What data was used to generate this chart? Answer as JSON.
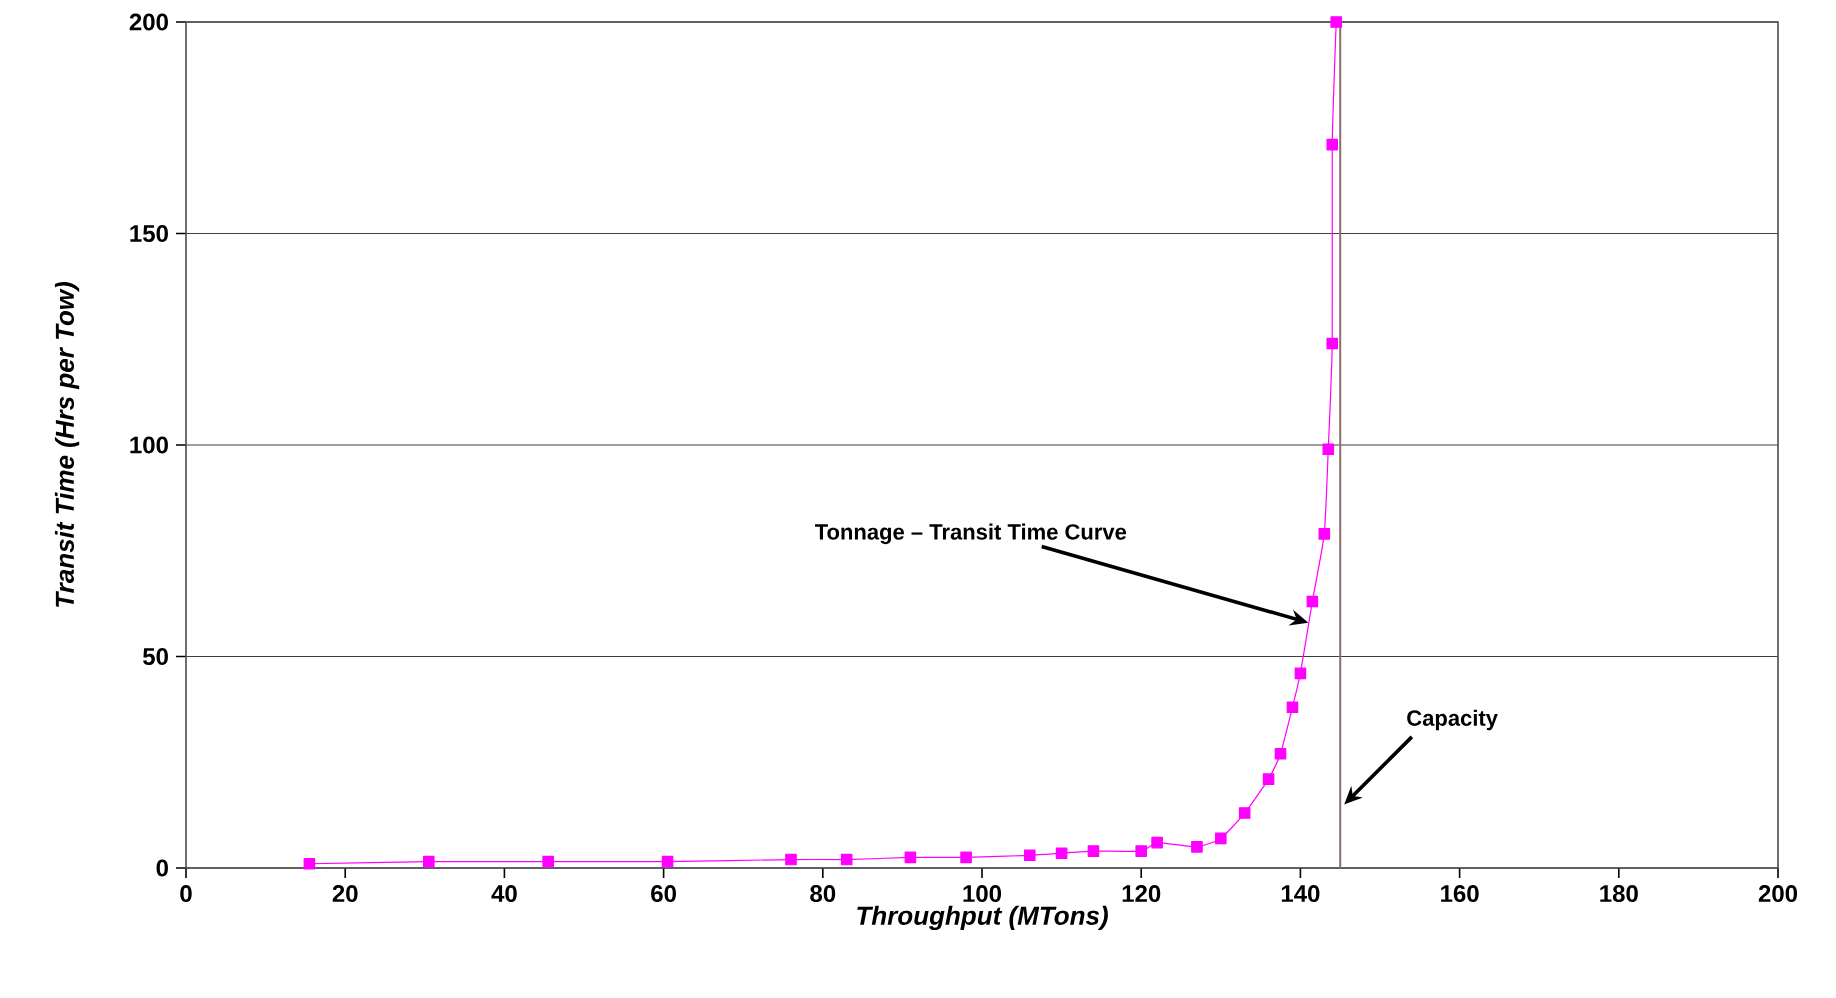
{
  "chart_data": {
    "type": "line",
    "xlabel": "Throughput (MTons)",
    "ylabel": "Transit Time (Hrs per Tow)",
    "x": [
      15.5,
      30.5,
      45.5,
      60.5,
      76,
      83,
      91,
      98,
      106,
      110,
      114,
      120,
      122,
      127,
      130,
      133,
      136,
      137.5,
      139,
      140,
      141.5,
      143,
      143.5,
      144,
      144,
      144.5
    ],
    "series": [
      {
        "color": "#ff00ff",
        "values": [
          1,
          1.5,
          1.5,
          1.5,
          2,
          2,
          2.5,
          2.5,
          3,
          3.5,
          4,
          4,
          6,
          5,
          7,
          13,
          21,
          27,
          38,
          46,
          63,
          79,
          99,
          124,
          171,
          200
        ]
      }
    ],
    "xlim": [
      0,
      200
    ],
    "ylim": [
      0,
      200
    ],
    "xticks": [
      0,
      20,
      40,
      60,
      80,
      100,
      120,
      140,
      160,
      180,
      200
    ],
    "yticks": [
      0,
      50,
      100,
      150,
      200
    ],
    "grid": "y",
    "marker": "square",
    "line_style": "solid",
    "ref_lines": [
      {
        "axis": "x",
        "value": 145,
        "label": "Capacity",
        "color": "#8c6e6e"
      }
    ],
    "annotations": [
      {
        "text": "Tonnage – Transit Time Curve",
        "x": 141.5,
        "y": 58
      }
    ]
  }
}
